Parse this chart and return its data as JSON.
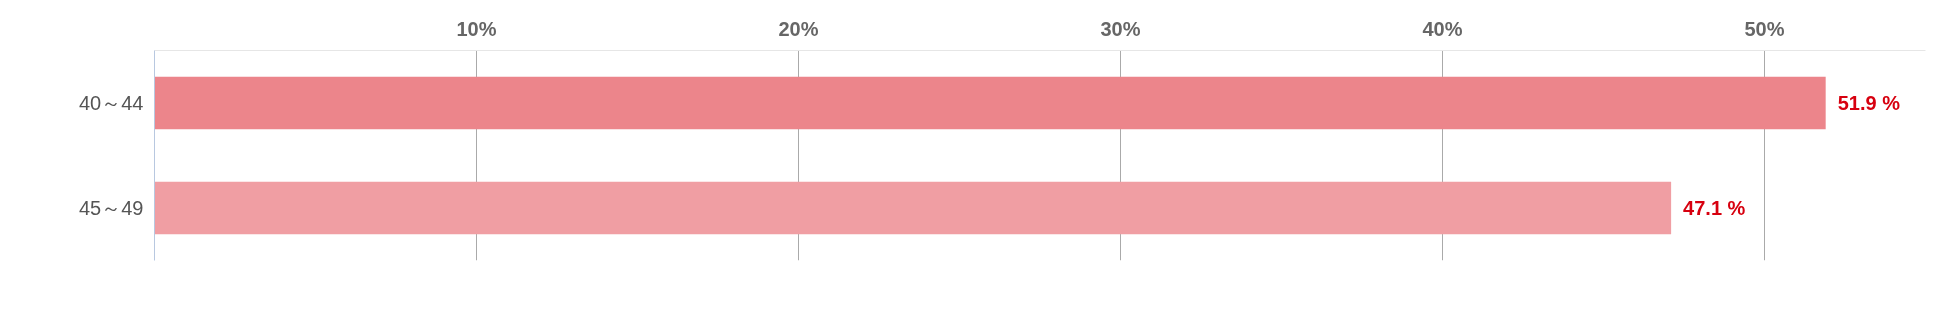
{
  "chart_data": {
    "type": "bar",
    "orientation": "horizontal",
    "categories": [
      "40～44",
      "45～49"
    ],
    "values": [
      51.9,
      47.1
    ],
    "colors": [
      "#ec858b",
      "#f09ea3"
    ],
    "value_labels": [
      "51.9 %",
      "47.1 %"
    ],
    "xticks": [
      {
        "value": 10,
        "label": "10%"
      },
      {
        "value": 20,
        "label": "20%"
      },
      {
        "value": 30,
        "label": "30%"
      },
      {
        "value": 40,
        "label": "40%"
      },
      {
        "value": 50,
        "label": "50%"
      }
    ],
    "xlim": [
      0,
      55
    ],
    "grid": "x"
  }
}
